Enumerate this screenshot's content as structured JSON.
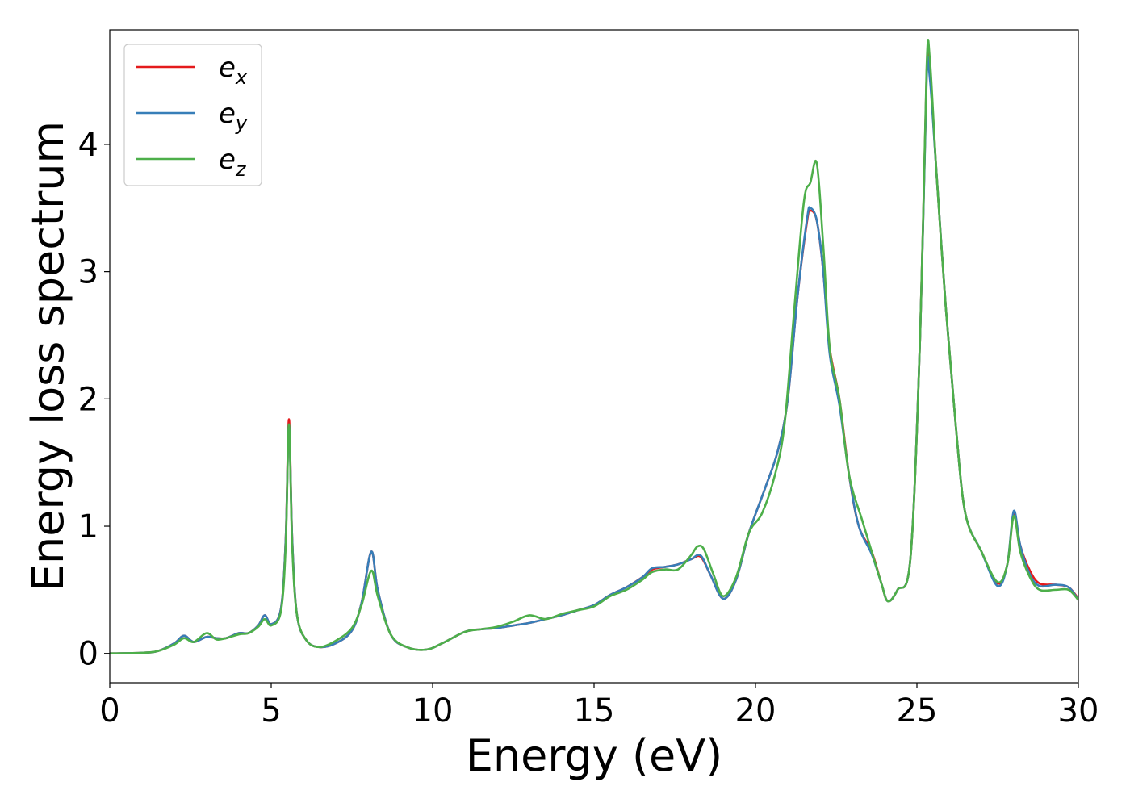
{
  "chart_data": {
    "type": "line",
    "title": "",
    "xlabel": "Energy (eV)",
    "ylabel": "Energy loss spectrum",
    "xlim": [
      0,
      30
    ],
    "ylim": [
      -0.23,
      4.9
    ],
    "xticks": [
      0,
      5,
      10,
      15,
      20,
      25,
      30
    ],
    "yticks": [
      0,
      1,
      2,
      3,
      4
    ],
    "grid": false,
    "legend_position": "top-left",
    "series": [
      {
        "name": "e",
        "subscript": "x",
        "color": "#e41a1c",
        "points": [
          [
            0,
            0
          ],
          [
            1,
            0.005
          ],
          [
            1.5,
            0.02
          ],
          [
            2,
            0.08
          ],
          [
            2.3,
            0.14
          ],
          [
            2.6,
            0.09
          ],
          [
            3,
            0.13
          ],
          [
            3.3,
            0.12
          ],
          [
            3.6,
            0.12
          ],
          [
            4,
            0.16
          ],
          [
            4.3,
            0.16
          ],
          [
            4.6,
            0.22
          ],
          [
            4.8,
            0.3
          ],
          [
            5,
            0.23
          ],
          [
            5.3,
            0.35
          ],
          [
            5.45,
            0.9
          ],
          [
            5.55,
            1.84
          ],
          [
            5.65,
            0.9
          ],
          [
            5.8,
            0.3
          ],
          [
            6.1,
            0.1
          ],
          [
            6.5,
            0.05
          ],
          [
            7,
            0.08
          ],
          [
            7.5,
            0.18
          ],
          [
            7.8,
            0.4
          ],
          [
            8.1,
            0.8
          ],
          [
            8.3,
            0.5
          ],
          [
            8.7,
            0.15
          ],
          [
            9.2,
            0.05
          ],
          [
            9.8,
            0.03
          ],
          [
            10.3,
            0.08
          ],
          [
            11,
            0.17
          ],
          [
            11.5,
            0.19
          ],
          [
            12,
            0.2
          ],
          [
            12.5,
            0.22
          ],
          [
            13,
            0.24
          ],
          [
            13.5,
            0.27
          ],
          [
            14,
            0.3
          ],
          [
            14.5,
            0.34
          ],
          [
            15,
            0.38
          ],
          [
            15.5,
            0.46
          ],
          [
            16,
            0.52
          ],
          [
            16.5,
            0.6
          ],
          [
            16.8,
            0.66
          ],
          [
            17.2,
            0.68
          ],
          [
            17.6,
            0.7
          ],
          [
            18,
            0.74
          ],
          [
            18.3,
            0.76
          ],
          [
            18.6,
            0.62
          ],
          [
            19,
            0.43
          ],
          [
            19.4,
            0.58
          ],
          [
            19.8,
            0.95
          ],
          [
            20.3,
            1.3
          ],
          [
            20.7,
            1.6
          ],
          [
            21,
            2.0
          ],
          [
            21.3,
            2.8
          ],
          [
            21.6,
            3.4
          ],
          [
            21.7,
            3.48
          ],
          [
            21.9,
            3.4
          ],
          [
            22.1,
            3.0
          ],
          [
            22.3,
            2.4
          ],
          [
            22.6,
            2.0
          ],
          [
            22.9,
            1.4
          ],
          [
            23.2,
            1.0
          ],
          [
            23.6,
            0.8
          ],
          [
            23.9,
            0.55
          ],
          [
            24.1,
            0.41
          ],
          [
            24.4,
            0.5
          ],
          [
            24.8,
            0.75
          ],
          [
            25.1,
            2.5
          ],
          [
            25.3,
            4.55
          ],
          [
            25.4,
            4.6
          ],
          [
            25.6,
            3.8
          ],
          [
            25.9,
            2.7
          ],
          [
            26.2,
            1.8
          ],
          [
            26.5,
            1.1
          ],
          [
            27,
            0.8
          ],
          [
            27.5,
            0.55
          ],
          [
            27.8,
            0.7
          ],
          [
            28,
            1.1
          ],
          [
            28.2,
            0.85
          ],
          [
            28.5,
            0.65
          ],
          [
            28.8,
            0.55
          ],
          [
            29.3,
            0.54
          ],
          [
            29.7,
            0.52
          ],
          [
            30,
            0.43
          ]
        ]
      },
      {
        "name": "e",
        "subscript": "y",
        "color": "#377eb8",
        "points": [
          [
            0,
            0
          ],
          [
            1,
            0.005
          ],
          [
            1.5,
            0.02
          ],
          [
            2,
            0.08
          ],
          [
            2.3,
            0.14
          ],
          [
            2.6,
            0.09
          ],
          [
            3,
            0.13
          ],
          [
            3.3,
            0.12
          ],
          [
            3.6,
            0.12
          ],
          [
            4,
            0.16
          ],
          [
            4.3,
            0.16
          ],
          [
            4.6,
            0.22
          ],
          [
            4.8,
            0.3
          ],
          [
            5,
            0.23
          ],
          [
            5.3,
            0.35
          ],
          [
            5.45,
            0.9
          ],
          [
            5.55,
            1.8
          ],
          [
            5.65,
            0.9
          ],
          [
            5.8,
            0.3
          ],
          [
            6.1,
            0.1
          ],
          [
            6.5,
            0.05
          ],
          [
            7,
            0.08
          ],
          [
            7.5,
            0.18
          ],
          [
            7.8,
            0.4
          ],
          [
            8.1,
            0.8
          ],
          [
            8.3,
            0.5
          ],
          [
            8.7,
            0.15
          ],
          [
            9.2,
            0.05
          ],
          [
            9.8,
            0.03
          ],
          [
            10.3,
            0.08
          ],
          [
            11,
            0.17
          ],
          [
            11.5,
            0.19
          ],
          [
            12,
            0.2
          ],
          [
            12.5,
            0.22
          ],
          [
            13,
            0.24
          ],
          [
            13.5,
            0.27
          ],
          [
            14,
            0.3
          ],
          [
            14.5,
            0.34
          ],
          [
            15,
            0.38
          ],
          [
            15.5,
            0.46
          ],
          [
            16,
            0.52
          ],
          [
            16.5,
            0.6
          ],
          [
            16.8,
            0.67
          ],
          [
            17.2,
            0.68
          ],
          [
            17.6,
            0.7
          ],
          [
            18,
            0.74
          ],
          [
            18.3,
            0.77
          ],
          [
            18.6,
            0.62
          ],
          [
            19,
            0.43
          ],
          [
            19.4,
            0.58
          ],
          [
            19.8,
            0.95
          ],
          [
            20.3,
            1.3
          ],
          [
            20.7,
            1.6
          ],
          [
            21,
            2.0
          ],
          [
            21.3,
            2.8
          ],
          [
            21.6,
            3.42
          ],
          [
            21.7,
            3.5
          ],
          [
            21.9,
            3.4
          ],
          [
            22.1,
            3.0
          ],
          [
            22.3,
            2.35
          ],
          [
            22.6,
            1.95
          ],
          [
            22.9,
            1.4
          ],
          [
            23.2,
            1.0
          ],
          [
            23.6,
            0.78
          ],
          [
            23.9,
            0.55
          ],
          [
            24.1,
            0.41
          ],
          [
            24.4,
            0.5
          ],
          [
            24.8,
            0.75
          ],
          [
            25.1,
            2.5
          ],
          [
            25.3,
            4.5
          ],
          [
            25.4,
            4.52
          ],
          [
            25.6,
            3.8
          ],
          [
            25.9,
            2.7
          ],
          [
            26.2,
            1.8
          ],
          [
            26.5,
            1.1
          ],
          [
            27,
            0.8
          ],
          [
            27.5,
            0.53
          ],
          [
            27.8,
            0.7
          ],
          [
            28,
            1.12
          ],
          [
            28.2,
            0.85
          ],
          [
            28.5,
            0.62
          ],
          [
            28.8,
            0.53
          ],
          [
            29.3,
            0.54
          ],
          [
            29.7,
            0.52
          ],
          [
            30,
            0.42
          ]
        ]
      },
      {
        "name": "e",
        "subscript": "z",
        "color": "#4daf4a",
        "points": [
          [
            0,
            0
          ],
          [
            1,
            0.005
          ],
          [
            1.5,
            0.02
          ],
          [
            2,
            0.07
          ],
          [
            2.3,
            0.12
          ],
          [
            2.6,
            0.09
          ],
          [
            3,
            0.16
          ],
          [
            3.3,
            0.11
          ],
          [
            3.6,
            0.12
          ],
          [
            4,
            0.15
          ],
          [
            4.3,
            0.16
          ],
          [
            4.6,
            0.21
          ],
          [
            4.8,
            0.27
          ],
          [
            5,
            0.22
          ],
          [
            5.3,
            0.33
          ],
          [
            5.45,
            0.85
          ],
          [
            5.55,
            1.8
          ],
          [
            5.65,
            0.85
          ],
          [
            5.8,
            0.3
          ],
          [
            6.1,
            0.1
          ],
          [
            6.5,
            0.05
          ],
          [
            7,
            0.1
          ],
          [
            7.5,
            0.2
          ],
          [
            7.8,
            0.38
          ],
          [
            8.1,
            0.65
          ],
          [
            8.3,
            0.45
          ],
          [
            8.7,
            0.15
          ],
          [
            9.2,
            0.05
          ],
          [
            9.8,
            0.03
          ],
          [
            10.3,
            0.08
          ],
          [
            11,
            0.17
          ],
          [
            11.5,
            0.19
          ],
          [
            12,
            0.21
          ],
          [
            12.5,
            0.25
          ],
          [
            13,
            0.3
          ],
          [
            13.5,
            0.27
          ],
          [
            14,
            0.31
          ],
          [
            14.5,
            0.34
          ],
          [
            15,
            0.37
          ],
          [
            15.5,
            0.45
          ],
          [
            16,
            0.5
          ],
          [
            16.5,
            0.58
          ],
          [
            16.8,
            0.64
          ],
          [
            17.2,
            0.66
          ],
          [
            17.6,
            0.66
          ],
          [
            18,
            0.77
          ],
          [
            18.2,
            0.84
          ],
          [
            18.4,
            0.82
          ],
          [
            18.7,
            0.62
          ],
          [
            19,
            0.45
          ],
          [
            19.4,
            0.6
          ],
          [
            19.8,
            0.95
          ],
          [
            20.2,
            1.1
          ],
          [
            20.6,
            1.4
          ],
          [
            20.9,
            1.8
          ],
          [
            21.2,
            2.7
          ],
          [
            21.5,
            3.55
          ],
          [
            21.7,
            3.7
          ],
          [
            21.9,
            3.85
          ],
          [
            22.1,
            3.2
          ],
          [
            22.3,
            2.4
          ],
          [
            22.6,
            2.0
          ],
          [
            22.9,
            1.4
          ],
          [
            23.3,
            1.05
          ],
          [
            23.6,
            0.8
          ],
          [
            23.9,
            0.55
          ],
          [
            24.1,
            0.41
          ],
          [
            24.4,
            0.5
          ],
          [
            24.8,
            0.75
          ],
          [
            25.1,
            2.5
          ],
          [
            25.3,
            4.6
          ],
          [
            25.4,
            4.67
          ],
          [
            25.6,
            3.8
          ],
          [
            25.9,
            2.7
          ],
          [
            26.2,
            1.8
          ],
          [
            26.5,
            1.1
          ],
          [
            27,
            0.8
          ],
          [
            27.5,
            0.56
          ],
          [
            27.8,
            0.7
          ],
          [
            28,
            1.08
          ],
          [
            28.2,
            0.8
          ],
          [
            28.5,
            0.6
          ],
          [
            28.8,
            0.5
          ],
          [
            29.3,
            0.5
          ],
          [
            29.7,
            0.5
          ],
          [
            30,
            0.42
          ]
        ]
      }
    ]
  }
}
